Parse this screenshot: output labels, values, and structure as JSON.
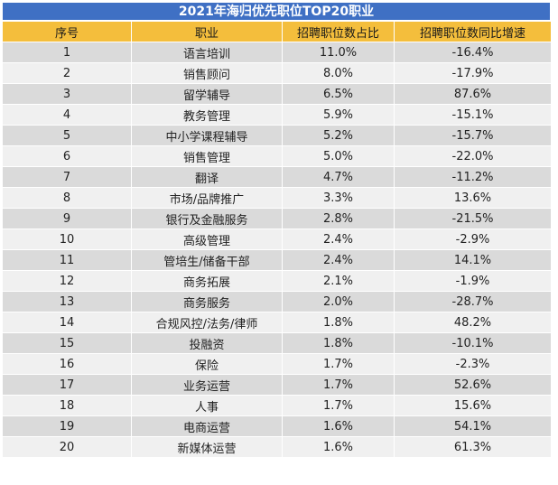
{
  "title": "2021年海归优先职位TOP20职业",
  "headers": [
    "序号",
    "职业",
    "招聘职位数占比",
    "招聘职位数同比增速"
  ],
  "rows": [
    [
      "1",
      "语言培训",
      "11.0%",
      "-16.4%"
    ],
    [
      "2",
      "销售顾问",
      "8.0%",
      "-17.9%"
    ],
    [
      "3",
      "留学辅导",
      "6.5%",
      "87.6%"
    ],
    [
      "4",
      "教务管理",
      "5.9%",
      "-15.1%"
    ],
    [
      "5",
      "中小学课程辅导",
      "5.2%",
      "-15.7%"
    ],
    [
      "6",
      "销售管理",
      "5.0%",
      "-22.0%"
    ],
    [
      "7",
      "翻译",
      "4.7%",
      "-11.2%"
    ],
    [
      "8",
      "市场/品牌推广",
      "3.3%",
      "13.6%"
    ],
    [
      "9",
      "银行及金融服务",
      "2.8%",
      "-21.5%"
    ],
    [
      "10",
      "高级管理",
      "2.4%",
      "-2.9%"
    ],
    [
      "11",
      "管培生/储备干部",
      "2.4%",
      "14.1%"
    ],
    [
      "12",
      "商务拓展",
      "2.1%",
      "-1.9%"
    ],
    [
      "13",
      "商务服务",
      "2.0%",
      "-28.7%"
    ],
    [
      "14",
      "合规风控/法务/律师",
      "1.8%",
      "48.2%"
    ],
    [
      "15",
      "投融资",
      "1.8%",
      "-10.1%"
    ],
    [
      "16",
      "保险",
      "1.7%",
      "-2.3%"
    ],
    [
      "17",
      "业务运营",
      "1.7%",
      "52.6%"
    ],
    [
      "18",
      "人事",
      "1.7%",
      "15.6%"
    ],
    [
      "19",
      "电商运营",
      "1.6%",
      "54.1%"
    ],
    [
      "20",
      "新媒体运营",
      "1.6%",
      "61.3%"
    ]
  ]
}
